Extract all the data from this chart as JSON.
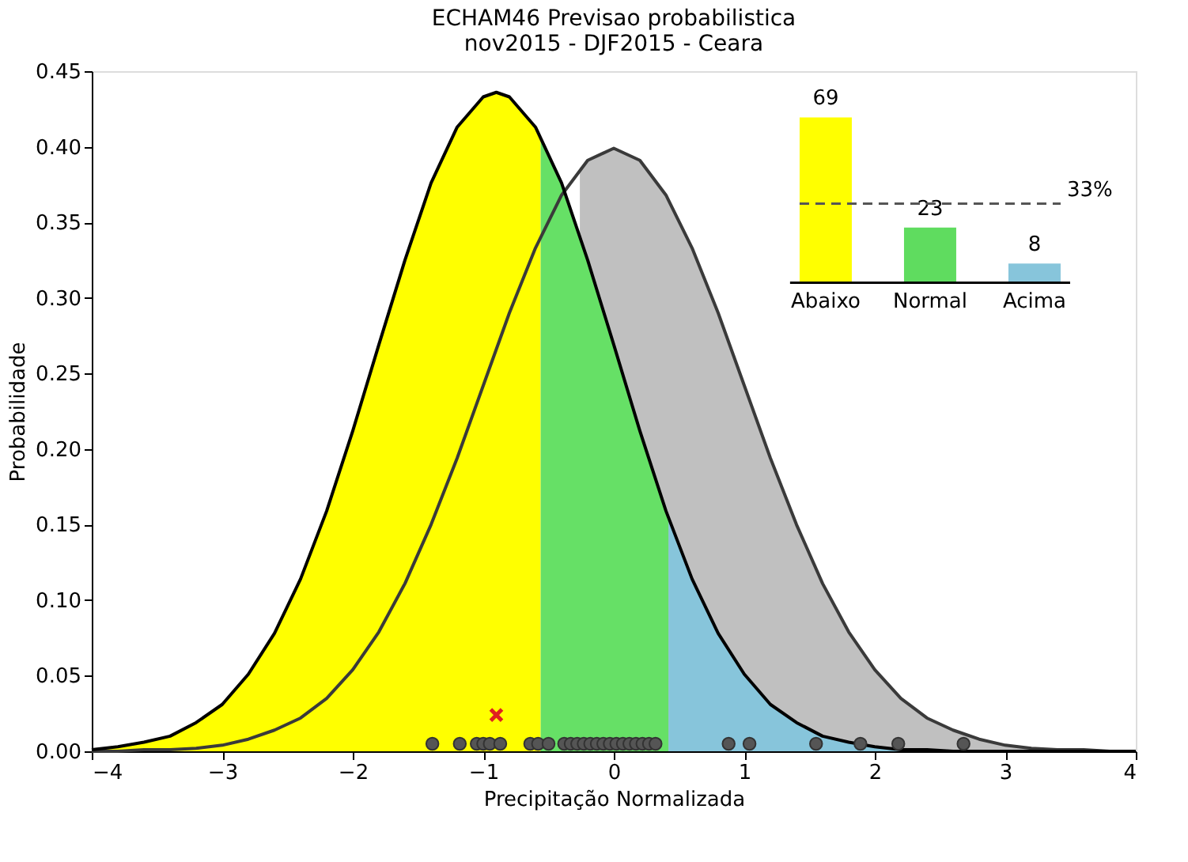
{
  "chart_data": [
    {
      "type": "line",
      "title": "ECHAM46 Previsao probabilistica",
      "subtitle": "nov2015 - DJF2015 - Ceara",
      "xlabel": "Precipitação Normalizada",
      "ylabel": "Probabilidade",
      "xlim": [
        -4,
        4
      ],
      "ylim": [
        0,
        0.45
      ],
      "xticks": [
        {
          "value": -4,
          "label": "−4"
        },
        {
          "value": -3,
          "label": "−3"
        },
        {
          "value": -2,
          "label": "−2"
        },
        {
          "value": -1,
          "label": "−1"
        },
        0,
        1,
        2,
        3,
        4
      ],
      "yticks": [
        {
          "value": 0,
          "label": "0.00"
        },
        0.05,
        {
          "value": 0.1,
          "label": "0.10"
        },
        0.15,
        {
          "value": 0.2,
          "label": "0.20"
        },
        0.25,
        {
          "value": 0.3,
          "label": "0.30"
        },
        0.35,
        {
          "value": 0.4,
          "label": "0.40"
        },
        0.45
      ],
      "grid": false,
      "series": [
        {
          "type": "area",
          "color": "#c0c0c0",
          "x": [
            -0.26,
            -0.2,
            0,
            0.2,
            0.4,
            0.6,
            0.8,
            1.0,
            1.2,
            1.4,
            1.6,
            1.8,
            2.0,
            2.2,
            2.4,
            2.6,
            2.8,
            3.0,
            3.2,
            3.4,
            3.6,
            3.8,
            4.0
          ],
          "values": [
            0.386,
            0.391,
            0.399,
            0.391,
            0.368,
            0.333,
            0.29,
            0.242,
            0.194,
            0.15,
            0.111,
            0.079,
            0.054,
            0.035,
            0.022,
            0.014,
            0.008,
            0.004,
            0.002,
            0.001,
            0.001,
            0.0,
            0.0
          ]
        },
        {
          "type": "area",
          "color": "#ffff00",
          "x": [
            -4,
            -3.8,
            -3.6,
            -3.4,
            -3.2,
            -3.0,
            -2.8,
            -2.6,
            -2.4,
            -2.2,
            -2.0,
            -1.8,
            -1.6,
            -1.4,
            -1.2,
            -1.0,
            -0.9,
            -0.8,
            -0.6,
            -0.56
          ],
          "values": [
            0.001,
            0.003,
            0.006,
            0.01,
            0.019,
            0.031,
            0.051,
            0.078,
            0.114,
            0.159,
            0.212,
            0.269,
            0.325,
            0.376,
            0.413,
            0.433,
            0.436,
            0.433,
            0.413,
            0.407
          ]
        },
        {
          "type": "area",
          "color": "#66e066",
          "x": [
            -0.56,
            -0.4,
            -0.2,
            0,
            0.2,
            0.4,
            0.42
          ],
          "values": [
            0.407,
            0.376,
            0.325,
            0.269,
            0.212,
            0.159,
            0.154
          ]
        },
        {
          "type": "area",
          "color": "#87c5db",
          "x": [
            0.42,
            0.6,
            0.8,
            1.0,
            1.2,
            1.4,
            1.6,
            1.8,
            2.0,
            2.2,
            2.4,
            2.6,
            2.8,
            3.0,
            3.2,
            3.4,
            3.6,
            3.8,
            4.0
          ],
          "values": [
            0.154,
            0.114,
            0.078,
            0.051,
            0.031,
            0.019,
            0.01,
            0.006,
            0.003,
            0.001,
            0.001,
            0.0,
            0.0,
            0.0,
            0.0,
            0.0,
            0.0,
            0.0,
            0.0
          ]
        },
        {
          "type": "line",
          "color": "#3a3a3a",
          "x": [
            -4,
            -3.8,
            -3.6,
            -3.4,
            -3.2,
            -3.0,
            -2.8,
            -2.6,
            -2.4,
            -2.2,
            -2.0,
            -1.8,
            -1.6,
            -1.4,
            -1.2,
            -1.0,
            -0.8,
            -0.6,
            -0.4,
            -0.2,
            0,
            0.2,
            0.4,
            0.6,
            0.8,
            1.0,
            1.2,
            1.4,
            1.6,
            1.8,
            2.0,
            2.2,
            2.4,
            2.6,
            2.8,
            3.0,
            3.2,
            3.4,
            3.6,
            3.8,
            4.0
          ],
          "values": [
            0.0,
            0.0,
            0.001,
            0.001,
            0.002,
            0.004,
            0.008,
            0.014,
            0.022,
            0.035,
            0.054,
            0.079,
            0.111,
            0.15,
            0.194,
            0.242,
            0.29,
            0.333,
            0.368,
            0.391,
            0.399,
            0.391,
            0.368,
            0.333,
            0.29,
            0.242,
            0.194,
            0.15,
            0.111,
            0.079,
            0.054,
            0.035,
            0.022,
            0.014,
            0.008,
            0.004,
            0.002,
            0.001,
            0.001,
            0.0,
            0.0
          ]
        },
        {
          "type": "line",
          "color": "#000000",
          "x": [
            -4,
            -3.8,
            -3.6,
            -3.4,
            -3.2,
            -3.0,
            -2.8,
            -2.6,
            -2.4,
            -2.2,
            -2.0,
            -1.8,
            -1.6,
            -1.4,
            -1.2,
            -1.0,
            -0.9,
            -0.8,
            -0.6,
            -0.4,
            -0.2,
            0,
            0.2,
            0.4,
            0.6,
            0.8,
            1.0,
            1.2,
            1.4,
            1.6,
            1.8,
            2.0,
            2.2,
            2.4,
            2.6,
            2.8,
            3.0,
            3.2,
            3.4,
            3.6,
            3.8,
            4.0
          ],
          "values": [
            0.001,
            0.003,
            0.006,
            0.01,
            0.019,
            0.031,
            0.051,
            0.078,
            0.114,
            0.159,
            0.212,
            0.269,
            0.325,
            0.376,
            0.413,
            0.433,
            0.436,
            0.433,
            0.413,
            0.376,
            0.325,
            0.269,
            0.212,
            0.159,
            0.114,
            0.078,
            0.051,
            0.031,
            0.019,
            0.01,
            0.006,
            0.003,
            0.001,
            0.001,
            0.0,
            0.0,
            0.0,
            0.0,
            0.0,
            0.0,
            0.0,
            0.0
          ]
        },
        {
          "type": "scatter",
          "marker": "circle",
          "color": "#555555",
          "x": [
            -1.39,
            -1.18,
            -1.05,
            -1.0,
            -0.95,
            -0.87,
            -0.64,
            -0.58,
            -0.5,
            -0.38,
            -0.33,
            -0.28,
            -0.23,
            -0.18,
            -0.13,
            -0.08,
            -0.03,
            0.02,
            0.07,
            0.12,
            0.17,
            0.22,
            0.27,
            0.32,
            0.88,
            1.04,
            1.55,
            1.89,
            2.18,
            2.68
          ],
          "values": [
            0.005,
            0.005,
            0.005,
            0.005,
            0.005,
            0.005,
            0.005,
            0.005,
            0.005,
            0.005,
            0.005,
            0.005,
            0.005,
            0.005,
            0.005,
            0.005,
            0.005,
            0.005,
            0.005,
            0.005,
            0.005,
            0.005,
            0.005,
            0.005,
            0.005,
            0.005,
            0.005,
            0.005,
            0.005,
            0.005
          ]
        },
        {
          "type": "scatter",
          "marker": "cross",
          "color": "#e02020",
          "x": [
            -0.9
          ],
          "values": [
            0.024
          ]
        }
      ]
    },
    {
      "type": "bar",
      "categories": [
        "Abaixo",
        "Normal",
        "Acima"
      ],
      "values": [
        69,
        23,
        8
      ],
      "colors": [
        "#ffff00",
        "#5fdc5f",
        "#87c5db"
      ],
      "data_labels": true,
      "ref_lines": [
        {
          "axis": "y",
          "value": 33,
          "label": "33%",
          "color": "#555555",
          "line_style": "dashed"
        }
      ]
    }
  ]
}
